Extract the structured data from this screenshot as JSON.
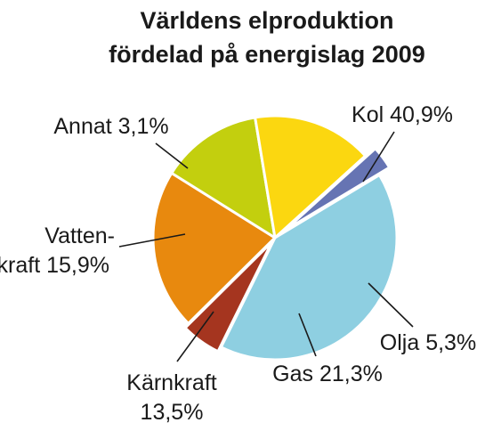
{
  "chart_data": {
    "type": "pie",
    "title": [
      "Världens elproduktion",
      "fördelad på energislag 2009"
    ],
    "start_angle_deg": -31,
    "direction": "clockwise",
    "slices": [
      {
        "name": "Kol",
        "value": 40.9,
        "label": [
          "Kol 40,9%"
        ],
        "color": "#8ecfe1"
      },
      {
        "name": "Olja",
        "value": 5.3,
        "label": [
          "Olja 5,3%"
        ],
        "color": "#a5351f"
      },
      {
        "name": "Gas",
        "value": 21.3,
        "label": [
          "Gas 21,3%"
        ],
        "color": "#e8890e"
      },
      {
        "name": "Kärnkraft",
        "value": 13.5,
        "label": [
          "Kärnkraft",
          "13,5%"
        ],
        "color": "#c3cf0e"
      },
      {
        "name": "Vattenkraft",
        "value": 15.9,
        "label": [
          "Vatten-",
          "kraft 15,9%"
        ],
        "color": "#fbd710"
      },
      {
        "name": "Annat",
        "value": 3.1,
        "label": [
          "Annat 3,1%"
        ],
        "color": "#6674b3"
      }
    ],
    "legend": "none",
    "grid": false
  }
}
